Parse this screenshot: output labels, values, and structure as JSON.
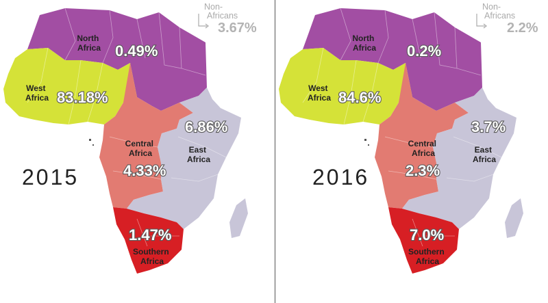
{
  "colors": {
    "north": "#a24ea3",
    "west": "#d5e238",
    "central": "#e27b72",
    "east": "#c8c5d8",
    "southern": "#d71f24",
    "non_africans": "#b3b3b3"
  },
  "regions": {
    "north_name": "North\nAfrica",
    "west_name": "West\nAfrica",
    "central_name": "Central\nAfrica",
    "east_name": "East\nAfrica",
    "southern_name": "Southern\nAfrica",
    "non_africans_label": "Non-\nAfricans"
  },
  "maps": [
    {
      "year": "2015",
      "north": "0.49%",
      "west": "83.18%",
      "central": "4.33%",
      "east": "6.86%",
      "southern": "1.47%",
      "non_africans": "3.67%"
    },
    {
      "year": "2016",
      "north": "0.2%",
      "west": "84.6%",
      "central": "2.3%",
      "east": "3.7%",
      "southern": "7.0%",
      "non_africans": "2.2%"
    }
  ]
}
